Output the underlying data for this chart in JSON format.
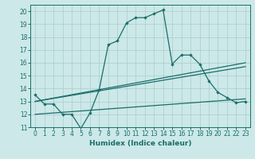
{
  "xlabel": "Humidex (Indice chaleur)",
  "background_color": "#cce8e8",
  "grid_color": "#aacccc",
  "line_color": "#1a6e6a",
  "xlim": [
    -0.5,
    23.5
  ],
  "ylim": [
    11,
    20.5
  ],
  "yticks": [
    11,
    12,
    13,
    14,
    15,
    16,
    17,
    18,
    19,
    20
  ],
  "xticks": [
    0,
    1,
    2,
    3,
    4,
    5,
    6,
    7,
    8,
    9,
    10,
    11,
    12,
    13,
    14,
    15,
    16,
    17,
    18,
    19,
    20,
    21,
    22,
    23
  ],
  "line1_x": [
    0,
    1,
    2,
    3,
    4,
    5,
    6,
    7,
    8,
    9,
    10,
    11,
    12,
    13,
    14,
    15,
    16,
    17,
    18,
    19,
    20,
    21,
    22,
    23
  ],
  "line1_y": [
    13.5,
    12.8,
    12.8,
    12.0,
    12.0,
    10.9,
    12.1,
    13.9,
    17.4,
    17.7,
    19.1,
    19.5,
    19.5,
    19.8,
    20.1,
    15.9,
    16.6,
    16.6,
    15.9,
    14.6,
    13.7,
    13.3,
    12.9,
    13.0
  ],
  "line2_x": [
    0,
    23
  ],
  "line2_y": [
    13.0,
    16.0
  ],
  "line3_x": [
    0,
    23
  ],
  "line3_y": [
    13.0,
    15.7
  ],
  "line4_x": [
    0,
    23
  ],
  "line4_y": [
    12.0,
    13.2
  ]
}
